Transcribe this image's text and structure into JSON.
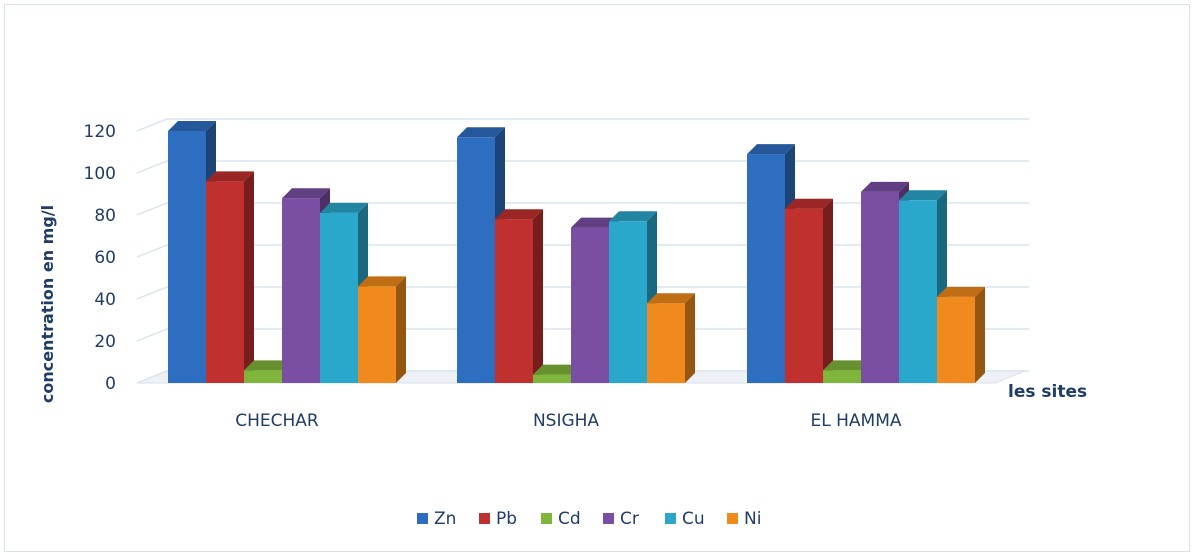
{
  "chart_data": {
    "type": "bar",
    "title": "",
    "xlabel": "les sites",
    "ylabel": "concentration en mg/l",
    "ylim": [
      0,
      120
    ],
    "yticks": [
      "0",
      "20",
      "40",
      "60",
      "80",
      "100",
      "120"
    ],
    "categories": [
      "CHECHAR",
      "NSIGHA",
      "EL HAMMA"
    ],
    "series": [
      {
        "name": "Zn",
        "color": "#2e6ec0",
        "values": [
          120,
          117,
          109
        ]
      },
      {
        "name": "Pb",
        "color": "#c0302e",
        "values": [
          96,
          78,
          83
        ]
      },
      {
        "name": "Cd",
        "color": "#7fb53a",
        "values": [
          6,
          4,
          6
        ]
      },
      {
        "name": "Cr",
        "color": "#7a4ea3",
        "values": [
          88,
          74,
          91
        ]
      },
      {
        "name": "Cu",
        "color": "#2aa8cc",
        "values": [
          81,
          77,
          87
        ]
      },
      {
        "name": "Ni",
        "color": "#f08a1c",
        "values": [
          46,
          38,
          41
        ]
      }
    ],
    "grid": true,
    "legend": "bottom"
  }
}
